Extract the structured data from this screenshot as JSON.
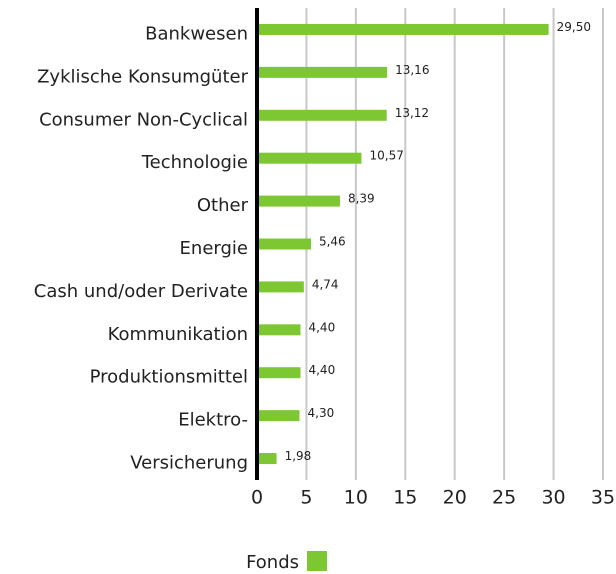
{
  "chart_data": {
    "type": "barh",
    "categories": [
      "Bankwesen",
      "Zyklische Konsumgüter",
      "Consumer Non-Cyclical",
      "Technologie",
      "Other",
      "Energie",
      "Cash und/oder Derivate",
      "Kommunikation",
      "Produktionsmittel",
      "Elektro-",
      "Versicherung"
    ],
    "series": [
      {
        "name": "Fonds",
        "color": "#7dc832",
        "values": [
          29.5,
          13.16,
          13.12,
          10.57,
          8.39,
          5.46,
          4.74,
          4.4,
          4.4,
          4.3,
          1.98
        ],
        "value_labels": [
          "29,50",
          "13,16",
          "13,12",
          "10,57",
          "8,39",
          "5,46",
          "4,74",
          "4,40",
          "4,40",
          "4,30",
          "1,98"
        ]
      }
    ],
    "xlim": [
      0,
      35
    ],
    "xticks": [
      0,
      5,
      10,
      15,
      20,
      25,
      30,
      35
    ],
    "grid": true
  }
}
